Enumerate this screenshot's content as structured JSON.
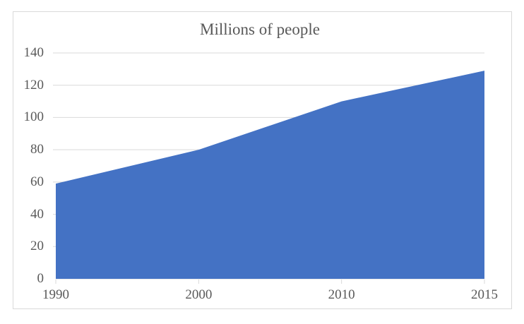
{
  "chart_data": {
    "type": "area",
    "title": "Millions of people",
    "categories": [
      "1990",
      "2000",
      "2010",
      "2015"
    ],
    "series": [
      {
        "name": "Millions of people",
        "values": [
          59,
          80,
          110,
          129
        ]
      }
    ],
    "xlabel": "",
    "ylabel": "",
    "ylim": [
      0,
      140
    ],
    "yticks": [
      0,
      20,
      40,
      60,
      80,
      100,
      120,
      140
    ],
    "grid": true,
    "legend_position": "none"
  },
  "colors": {
    "area_fill": "#4472C4",
    "gridline": "#d9d9d9",
    "axis_line": "#d9d9d9",
    "tick_mark": "#d9d9d9",
    "axis_text": "#595959",
    "title_text": "#595959",
    "frame_border": "#d9d9d9",
    "background": "#ffffff"
  }
}
